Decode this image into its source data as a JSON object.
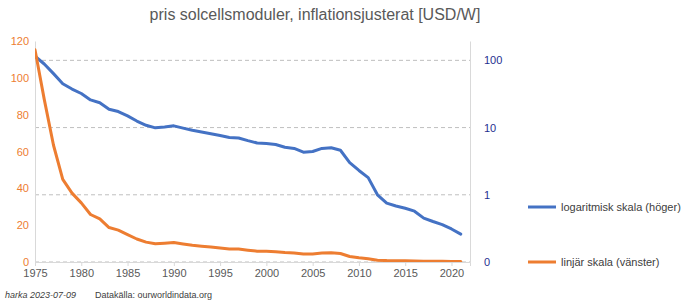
{
  "chart_data": {
    "type": "line",
    "title": "pris solcellsmoduler, inflationsjusterat [USD/W]",
    "x": [
      1975,
      1976,
      1977,
      1978,
      1979,
      1980,
      1981,
      1982,
      1983,
      1984,
      1985,
      1986,
      1987,
      1988,
      1989,
      1990,
      1991,
      1992,
      1993,
      1994,
      1995,
      1996,
      1997,
      1998,
      1999,
      2000,
      2001,
      2002,
      2003,
      2004,
      2005,
      2006,
      2007,
      2008,
      2009,
      2010,
      2011,
      2012,
      2013,
      2014,
      2015,
      2016,
      2017,
      2018,
      2019,
      2020,
      2021
    ],
    "series": [
      {
        "name": "logaritmisk skala (höger)",
        "color": "#4472c4",
        "axis": "y2",
        "log": true,
        "values": [
          115.3,
          88.3,
          63.4,
          44.9,
          37.4,
          32.1,
          25.8,
          23.4,
          18.7,
          17.3,
          14.9,
          12.5,
          10.8,
          9.9,
          10.2,
          10.6,
          9.8,
          9.1,
          8.6,
          8.1,
          7.6,
          7.1,
          7.0,
          6.4,
          5.9,
          5.8,
          5.6,
          5.1,
          4.9,
          4.3,
          4.4,
          4.9,
          5.0,
          4.6,
          3.0,
          2.3,
          1.8,
          1.0,
          0.75,
          0.68,
          0.63,
          0.57,
          0.45,
          0.4,
          0.36,
          0.31,
          0.26
        ]
      },
      {
        "name": "linjär skala (vänster)",
        "color": "#ed7d31",
        "values": [
          115.3,
          88.3,
          63.4,
          44.9,
          37.4,
          32.1,
          25.8,
          23.4,
          18.7,
          17.3,
          14.9,
          12.5,
          10.8,
          9.9,
          10.2,
          10.6,
          9.8,
          9.1,
          8.6,
          8.1,
          7.6,
          7.1,
          7.0,
          6.4,
          5.9,
          5.8,
          5.6,
          5.1,
          4.9,
          4.3,
          4.4,
          4.9,
          5.0,
          4.6,
          3.0,
          2.3,
          1.8,
          1.0,
          0.75,
          0.68,
          0.63,
          0.57,
          0.45,
          0.4,
          0.36,
          0.31,
          0.26
        ]
      }
    ],
    "xlim": [
      1975,
      2022
    ],
    "xticks": [
      1975,
      1980,
      1985,
      1990,
      1995,
      2000,
      2005,
      2010,
      2015,
      2020
    ],
    "ylim": [
      0,
      120
    ],
    "yticks": [
      0,
      20,
      40,
      60,
      80,
      100,
      120
    ],
    "y2lim": [
      0.1,
      194
    ],
    "y2ticks": [
      {
        "value": 0.1,
        "label": "0"
      },
      1,
      10,
      100
    ],
    "grid": true,
    "legend": "right",
    "annotations": [
      "harka 2023-07-09",
      "Datakälla: ourworldindata.org"
    ]
  }
}
